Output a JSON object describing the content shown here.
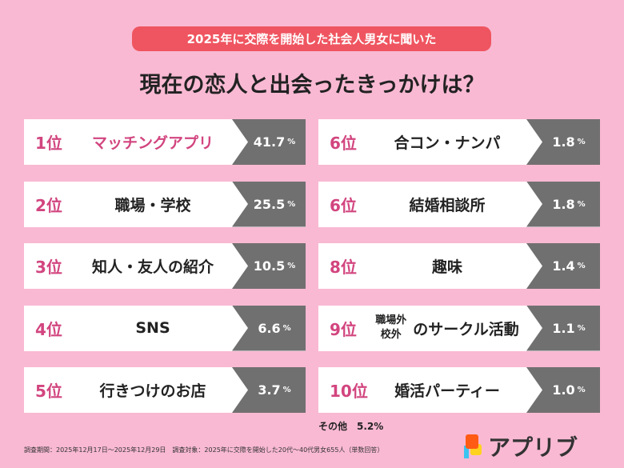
{
  "header": {
    "subtitle": "2025年に交際を開始した社会人男女に聞いた",
    "title": "現在の恋人と出会ったきっかけは？"
  },
  "rankings": [
    {
      "rank": "1位",
      "label": "マッチングアプリ",
      "value": "41.7",
      "unit": "%"
    },
    {
      "rank": "2位",
      "label": "職場・学校",
      "value": "25.5",
      "unit": "%"
    },
    {
      "rank": "3位",
      "label": "知人・友人の紹介",
      "value": "10.5",
      "unit": "%"
    },
    {
      "rank": "4位",
      "label": "SNS",
      "value": "6.6",
      "unit": "%"
    },
    {
      "rank": "5位",
      "label": "行きつけのお店",
      "value": "3.7",
      "unit": "%"
    },
    {
      "rank": "6位",
      "label": "合コン・ナンパ",
      "value": "1.8",
      "unit": "%"
    },
    {
      "rank": "6位",
      "label": "結婚相談所",
      "value": "1.8",
      "unit": "%"
    },
    {
      "rank": "8位",
      "label": "趣味",
      "value": "1.4",
      "unit": "%"
    },
    {
      "rank": "9位",
      "label_top": "職場外",
      "label_bottom": "校外",
      "label": "のサークル活動",
      "value": "1.1",
      "unit": "%"
    },
    {
      "rank": "10位",
      "label": "婚活パーティー",
      "value": "1.0",
      "unit": "%"
    }
  ],
  "other": "その他　5.2%",
  "footnote": "調査期間：2025年12月17日〜2025年12月29日　調査対象：2025年に交際を開始した20代〜40代男女655人（単数回答）",
  "logo": {
    "text": "アプリブ"
  },
  "colors": {
    "background": "#f9b9d3",
    "accent": "#d2457f",
    "pill": "#ef5560",
    "value_bg": "#707070"
  }
}
